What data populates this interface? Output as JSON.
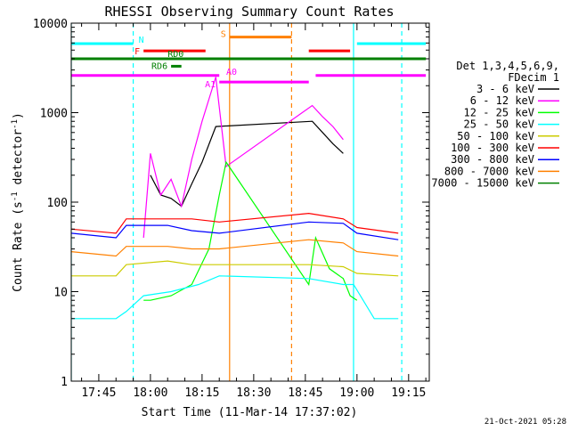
{
  "chart_data": {
    "type": "line",
    "title": "RHESSI Observing Summary Count Rates",
    "xlabel": "Start Time (11-Mar-14 17:37:02)",
    "ylabel_main": "Count Rate (s",
    "ylabel_sup": "-1",
    "ylabel_mid": " detector",
    "ylabel_end": ")",
    "yscale": "log",
    "ylim": [
      1,
      10000
    ],
    "xlim_minutes": [
      "17:37",
      "19:21"
    ],
    "x_ticks": [
      "17:45",
      "18:00",
      "18:15",
      "18:30",
      "18:45",
      "19:00",
      "19:15"
    ],
    "y_ticks": [
      "1",
      "10",
      "100",
      "1000",
      "10000"
    ],
    "timestamp": "21-Oct-2021 05:28",
    "legend_header": [
      "Det 1,3,4,5,6,9,",
      "FDecim 1"
    ],
    "series": [
      {
        "name": "3 - 6 keV",
        "color": "#000000",
        "points": [
          [
            "18:00",
            200
          ],
          [
            "18:03",
            120
          ],
          [
            "18:06",
            110
          ],
          [
            "18:09",
            90
          ],
          [
            "18:12",
            160
          ],
          [
            "18:15",
            280
          ],
          [
            "18:19",
            700
          ],
          [
            "18:47",
            800
          ],
          [
            "18:50",
            600
          ],
          [
            "18:53",
            450
          ],
          [
            "18:56",
            350
          ]
        ]
      },
      {
        "name": "6 - 12 keV",
        "color": "#ff00ff",
        "points": [
          [
            "17:58",
            40
          ],
          [
            "18:00",
            350
          ],
          [
            "18:03",
            120
          ],
          [
            "18:06",
            180
          ],
          [
            "18:09",
            90
          ],
          [
            "18:12",
            300
          ],
          [
            "18:15",
            800
          ],
          [
            "18:19",
            2500
          ],
          [
            "18:22",
            250
          ],
          [
            "18:47",
            1200
          ],
          [
            "18:50",
            900
          ],
          [
            "18:53",
            700
          ],
          [
            "18:56",
            500
          ]
        ]
      },
      {
        "name": "12 - 25 keV",
        "color": "#00ff00",
        "points": [
          [
            "17:58",
            8
          ],
          [
            "18:00",
            8
          ],
          [
            "18:06",
            9
          ],
          [
            "18:12",
            12
          ],
          [
            "18:17",
            30
          ],
          [
            "18:20",
            120
          ],
          [
            "18:22",
            280
          ],
          [
            "18:46",
            12
          ],
          [
            "18:48",
            40
          ],
          [
            "18:52",
            18
          ],
          [
            "18:56",
            14
          ],
          [
            "18:58",
            9
          ],
          [
            "19:00",
            8
          ]
        ]
      },
      {
        "name": "25 - 50 keV",
        "color": "#00ffff",
        "points": [
          [
            "17:37",
            5
          ],
          [
            "17:50",
            5
          ],
          [
            "17:53",
            6
          ],
          [
            "17:58",
            9
          ],
          [
            "18:06",
            10
          ],
          [
            "18:14",
            12
          ],
          [
            "18:20",
            15
          ],
          [
            "18:46",
            14
          ],
          [
            "18:56",
            12
          ],
          [
            "18:59",
            12
          ],
          [
            "19:05",
            5
          ],
          [
            "19:12",
            5
          ]
        ]
      },
      {
        "name": "50 - 100 keV",
        "color": "#cccc00",
        "points": [
          [
            "17:37",
            15
          ],
          [
            "17:50",
            15
          ],
          [
            "17:53",
            20
          ],
          [
            "18:05",
            22
          ],
          [
            "18:12",
            20
          ],
          [
            "18:20",
            20
          ],
          [
            "18:46",
            20
          ],
          [
            "18:56",
            19
          ],
          [
            "19:00",
            16
          ],
          [
            "19:12",
            15
          ]
        ]
      },
      {
        "name": "100 - 300 keV",
        "color": "#ff0000",
        "points": [
          [
            "17:37",
            50
          ],
          [
            "17:50",
            45
          ],
          [
            "17:53",
            65
          ],
          [
            "18:05",
            65
          ],
          [
            "18:12",
            65
          ],
          [
            "18:20",
            60
          ],
          [
            "18:46",
            75
          ],
          [
            "18:56",
            65
          ],
          [
            "19:00",
            52
          ],
          [
            "19:12",
            45
          ]
        ]
      },
      {
        "name": "300 - 800 keV",
        "color": "#0000ff",
        "points": [
          [
            "17:37",
            45
          ],
          [
            "17:50",
            40
          ],
          [
            "17:53",
            55
          ],
          [
            "18:05",
            55
          ],
          [
            "18:12",
            48
          ],
          [
            "18:20",
            45
          ],
          [
            "18:46",
            60
          ],
          [
            "18:56",
            58
          ],
          [
            "19:00",
            45
          ],
          [
            "19:12",
            38
          ]
        ]
      },
      {
        "name": "800 - 7000 keV",
        "color": "#ff8000",
        "points": [
          [
            "17:37",
            28
          ],
          [
            "17:50",
            25
          ],
          [
            "17:53",
            32
          ],
          [
            "18:05",
            32
          ],
          [
            "18:12",
            30
          ],
          [
            "18:20",
            30
          ],
          [
            "18:46",
            38
          ],
          [
            "18:56",
            35
          ],
          [
            "19:00",
            28
          ],
          [
            "19:12",
            25
          ]
        ]
      },
      {
        "name": "7000 - 15000 keV",
        "color": "#008000",
        "points": []
      }
    ],
    "flag_bars": [
      {
        "label": "N",
        "color": "#00ffff",
        "segments": [
          [
            "17:37",
            "17:55"
          ],
          [
            "19:00",
            "19:20"
          ]
        ],
        "level": 5900
      },
      {
        "label": "S",
        "color": "#ff8000",
        "segments": [
          [
            "18:23",
            "18:41"
          ]
        ],
        "level": 7000
      },
      {
        "label": "F",
        "color": "#ff0000",
        "segments": [
          [
            "17:58",
            "18:16"
          ],
          [
            "18:46",
            "18:58"
          ]
        ],
        "level": 4900
      },
      {
        "label": "RD0",
        "color": "#008000",
        "segments": [
          [
            "17:37",
            "19:20"
          ]
        ],
        "level": 4000
      },
      {
        "label": "RD6",
        "color": "#008000",
        "segments": [
          [
            "18:06",
            "18:09"
          ]
        ],
        "level": 3300
      },
      {
        "label": "A0",
        "color": "#ff00ff",
        "segments": [
          [
            "17:37",
            "18:20"
          ],
          [
            "18:48",
            "19:20"
          ]
        ],
        "level": 2600
      },
      {
        "label": "A1",
        "color": "#ff00ff",
        "segments": [
          [
            "18:20",
            "18:46"
          ]
        ],
        "level": 2200
      }
    ],
    "vertical_markers": [
      {
        "time": "17:37",
        "color": "#00ffff",
        "style": "solid"
      },
      {
        "time": "17:55",
        "color": "#00ffff",
        "style": "dashed"
      },
      {
        "time": "18:23",
        "color": "#ff8000",
        "style": "solid"
      },
      {
        "time": "18:41",
        "color": "#ff8000",
        "style": "dashed"
      },
      {
        "time": "18:59",
        "color": "#00ffff",
        "style": "solid"
      },
      {
        "time": "19:13",
        "color": "#00ffff",
        "style": "dashed"
      }
    ]
  }
}
